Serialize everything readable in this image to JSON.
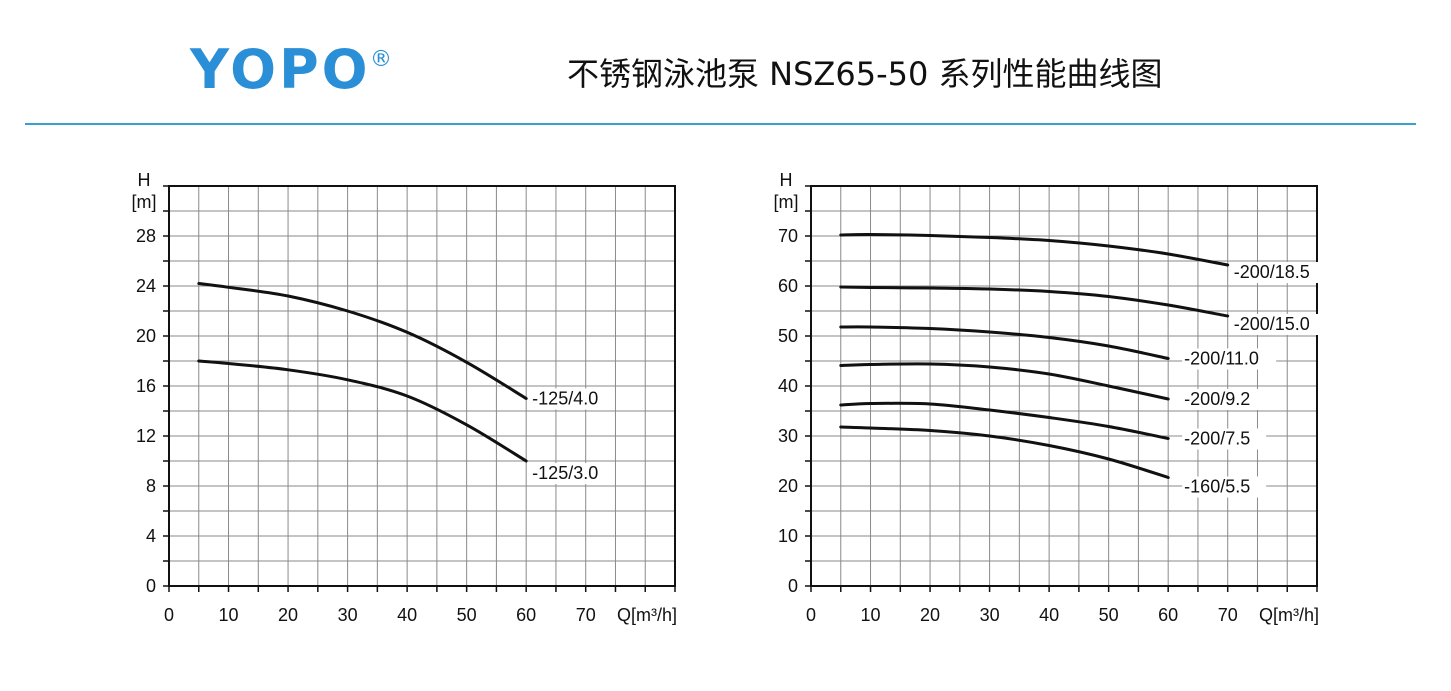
{
  "logo": {
    "text": "YOPO",
    "registered": "®",
    "color": "#2a8fd6"
  },
  "header": {
    "title": "不锈钢泳池泵 NSZ65-50 系列性能曲线图",
    "rule_color": "#3aa0cf"
  },
  "chart_data": [
    {
      "type": "line",
      "title": "",
      "xlabel": "Q[m³/h]",
      "ylabel_line1": "H",
      "ylabel_line2": "[m]",
      "xlim": [
        0,
        85
      ],
      "ylim": [
        0,
        32
      ],
      "xticks": [
        0,
        10,
        20,
        30,
        40,
        50,
        60,
        70
      ],
      "yticks": [
        0,
        4,
        8,
        12,
        16,
        20,
        24,
        28
      ],
      "grid": true,
      "series": [
        {
          "name": "-125/4.0",
          "x": [
            5,
            10,
            20,
            30,
            40,
            50,
            60
          ],
          "y": [
            24.2,
            23.9,
            23.2,
            22.0,
            20.3,
            17.9,
            15.0
          ]
        },
        {
          "name": "-125/3.0",
          "x": [
            5,
            10,
            20,
            30,
            40,
            50,
            60
          ],
          "y": [
            18.0,
            17.8,
            17.3,
            16.5,
            15.2,
            12.9,
            10.0
          ]
        }
      ]
    },
    {
      "type": "line",
      "title": "",
      "xlabel": "Q[m³/h]",
      "ylabel_line1": "H",
      "ylabel_line2": "[m]",
      "xlim": [
        0,
        85
      ],
      "ylim": [
        0,
        80
      ],
      "xticks": [
        0,
        10,
        20,
        30,
        40,
        50,
        60,
        70
      ],
      "yticks": [
        0,
        10,
        20,
        30,
        40,
        50,
        60,
        70
      ],
      "grid": true,
      "series": [
        {
          "name": "-200/18.5",
          "x": [
            5,
            10,
            20,
            30,
            40,
            50,
            60,
            70
          ],
          "y": [
            70.2,
            70.3,
            70.1,
            69.7,
            69.1,
            68.0,
            66.4,
            64.2
          ]
        },
        {
          "name": "-200/15.0",
          "x": [
            5,
            10,
            20,
            30,
            40,
            50,
            60,
            70
          ],
          "y": [
            59.8,
            59.7,
            59.6,
            59.4,
            58.9,
            57.9,
            56.2,
            54.0
          ]
        },
        {
          "name": "-200/11.0",
          "x": [
            5,
            10,
            20,
            30,
            40,
            50,
            60
          ],
          "y": [
            51.8,
            51.8,
            51.5,
            50.8,
            49.7,
            48.0,
            45.5
          ]
        },
        {
          "name": "-200/9.2",
          "x": [
            5,
            10,
            20,
            30,
            40,
            50,
            60
          ],
          "y": [
            44.1,
            44.3,
            44.4,
            43.8,
            42.4,
            40.0,
            37.4
          ]
        },
        {
          "name": "-200/7.5",
          "x": [
            5,
            10,
            20,
            30,
            40,
            50,
            60
          ],
          "y": [
            36.2,
            36.5,
            36.4,
            35.2,
            33.7,
            31.9,
            29.5
          ]
        },
        {
          "name": "-160/5.5",
          "x": [
            5,
            10,
            20,
            30,
            40,
            50,
            60
          ],
          "y": [
            31.8,
            31.6,
            31.1,
            30.0,
            28.1,
            25.4,
            21.7
          ]
        }
      ]
    }
  ]
}
